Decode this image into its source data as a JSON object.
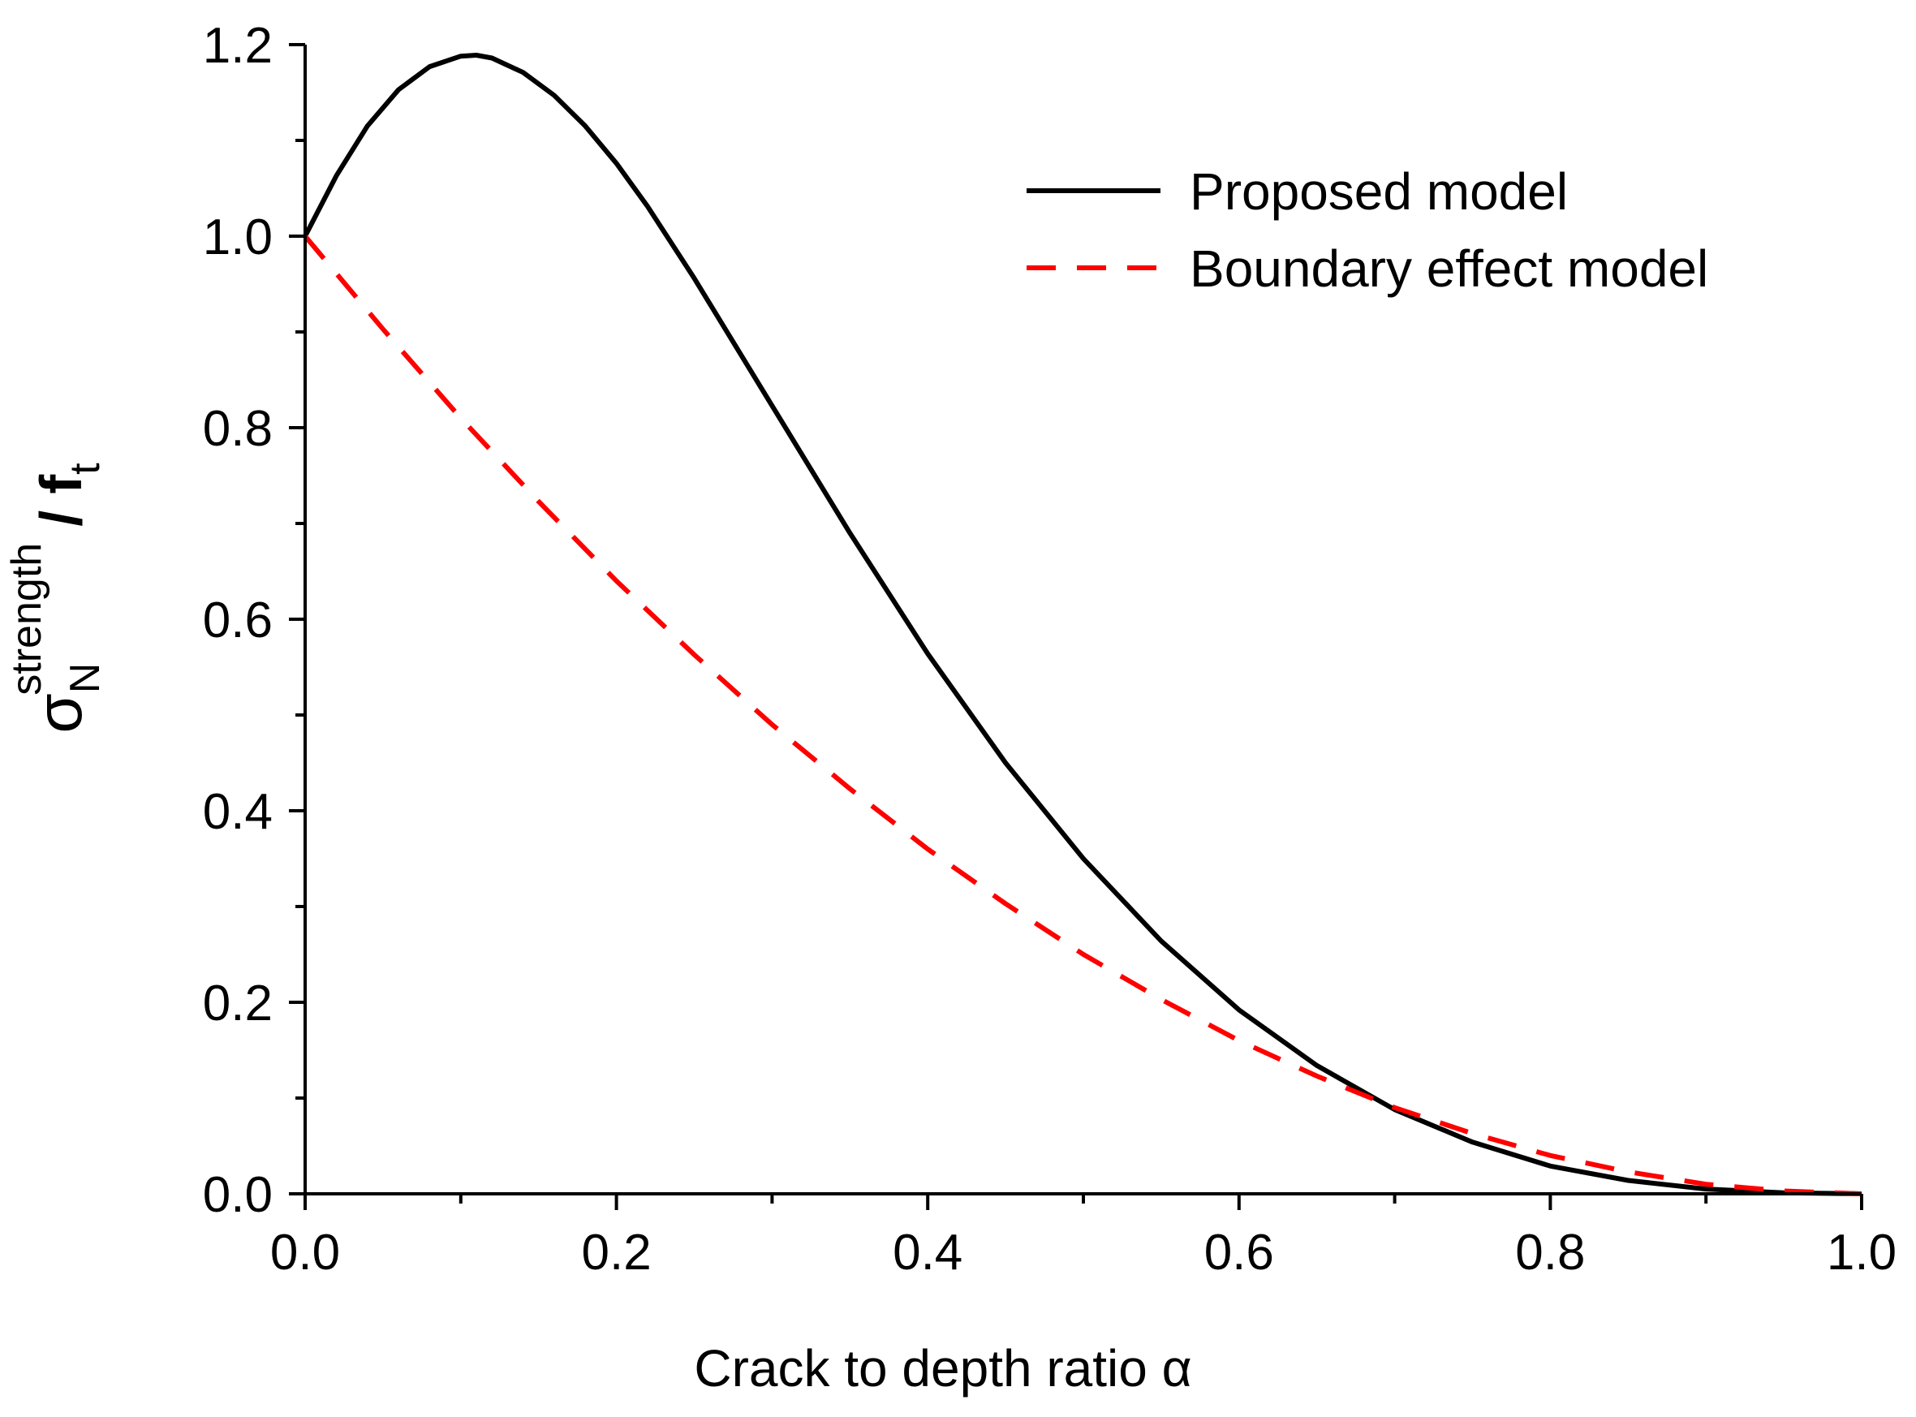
{
  "chart_data": {
    "type": "line",
    "title": "",
    "xlabel": "Crack to depth ratio α",
    "ylabel": {
      "symbol": "σ",
      "subscript": "N",
      "superscript": "strength",
      "divider": " / ",
      "denominator": "f",
      "denominator_subscript": "t"
    },
    "xlim": [
      0.0,
      1.0
    ],
    "ylim": [
      0.0,
      1.2
    ],
    "xticks": [
      "0.0",
      "0.2",
      "0.4",
      "0.6",
      "0.8",
      "1.0"
    ],
    "yticks": [
      "0.0",
      "0.2",
      "0.4",
      "0.6",
      "0.8",
      "1.0",
      "1.2"
    ],
    "legend_position": "top-right",
    "grid": false,
    "series": [
      {
        "name": "Proposed model",
        "color": "#000000",
        "dash": "solid",
        "x": [
          0.0,
          0.02,
          0.04,
          0.06,
          0.08,
          0.1,
          0.11,
          0.12,
          0.14,
          0.16,
          0.18,
          0.2,
          0.22,
          0.25,
          0.3,
          0.35,
          0.4,
          0.45,
          0.5,
          0.55,
          0.6,
          0.65,
          0.7,
          0.75,
          0.8,
          0.85,
          0.9,
          0.95,
          1.0
        ],
        "y": [
          1.0,
          1.063,
          1.115,
          1.153,
          1.177,
          1.188,
          1.189,
          1.186,
          1.171,
          1.147,
          1.115,
          1.076,
          1.031,
          0.956,
          0.823,
          0.69,
          0.564,
          0.45,
          0.35,
          0.264,
          0.192,
          0.134,
          0.088,
          0.054,
          0.029,
          0.014,
          0.005,
          0.001,
          0.0
        ]
      },
      {
        "name": "Boundary effect model",
        "color": "#ff0000",
        "dash": "dashed",
        "x": [
          0.0,
          0.05,
          0.1,
          0.15,
          0.2,
          0.25,
          0.3,
          0.35,
          0.4,
          0.45,
          0.5,
          0.55,
          0.6,
          0.65,
          0.7,
          0.75,
          0.8,
          0.85,
          0.9,
          0.95,
          1.0
        ],
        "y": [
          1.0,
          0.903,
          0.81,
          0.723,
          0.64,
          0.563,
          0.49,
          0.423,
          0.36,
          0.303,
          0.25,
          0.203,
          0.16,
          0.123,
          0.09,
          0.063,
          0.04,
          0.023,
          0.01,
          0.003,
          0.0
        ]
      }
    ]
  }
}
